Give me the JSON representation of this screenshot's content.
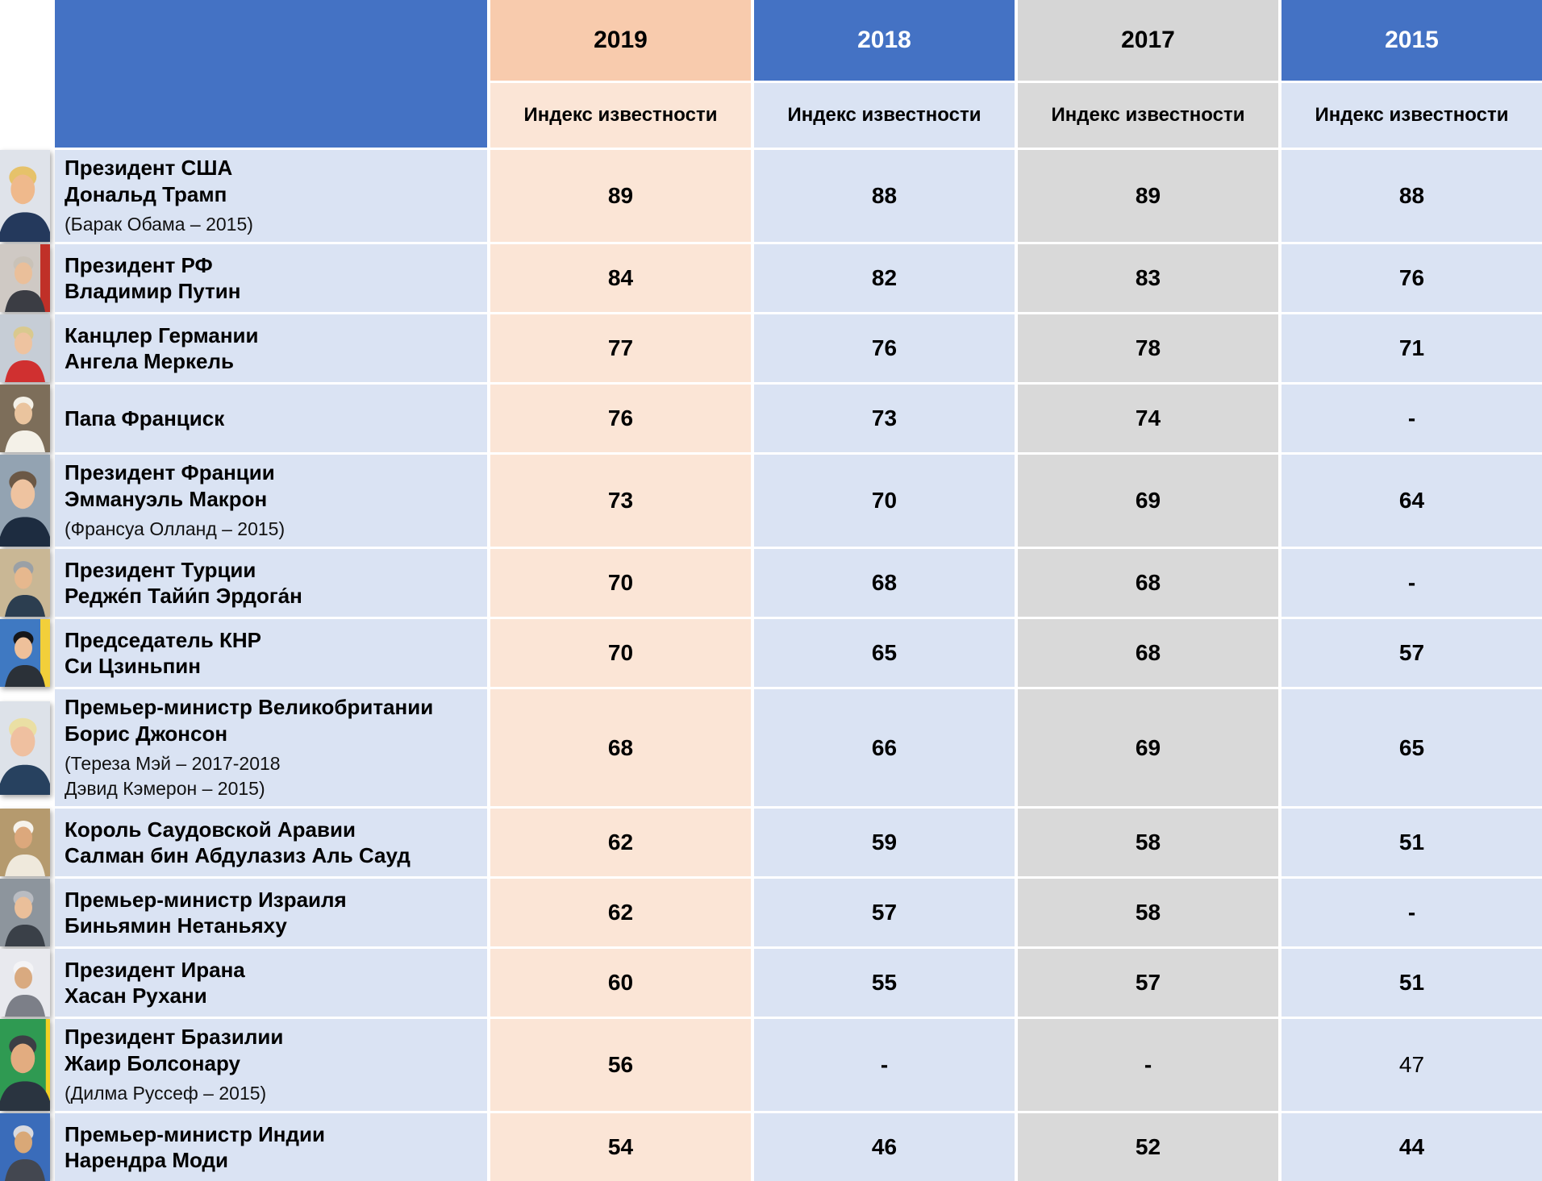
{
  "table": {
    "corner_bg": "#4472C4",
    "label_col_bg": "#DAE3F3",
    "columns": [
      {
        "year": "2019",
        "subheader": "Индекс известности",
        "header_bg": "#F8CBAD",
        "header_fg": "#000000",
        "cell_bg": "#FBE5D6"
      },
      {
        "year": "2018",
        "subheader": "Индекс известности",
        "header_bg": "#4472C4",
        "header_fg": "#FFFFFF",
        "cell_bg": "#DAE3F3"
      },
      {
        "year": "2017",
        "subheader": "Индекс известности",
        "header_bg": "#D6D6D6",
        "header_fg": "#000000",
        "cell_bg": "#D9D9D9"
      },
      {
        "year": "2015",
        "subheader": "Индекс известности",
        "header_bg": "#4472C4",
        "header_fg": "#FFFFFF",
        "cell_bg": "#DAE3F3"
      }
    ],
    "rows": [
      {
        "lines": [
          "Президент США",
          "Дональд Трамп"
        ],
        "note": [
          "(Барак Обама – 2015)"
        ],
        "values": [
          {
            "v": "89"
          },
          {
            "v": "88"
          },
          {
            "v": "89"
          },
          {
            "v": "88"
          }
        ],
        "photo": {
          "bg": "#dfe3ea",
          "hair": "#e6c26a",
          "skin": "#efb98c",
          "suit": "#24395c"
        }
      },
      {
        "lines": [
          "Президент РФ",
          "Владимир Путин"
        ],
        "note": [],
        "values": [
          {
            "v": "84"
          },
          {
            "v": "82"
          },
          {
            "v": "83"
          },
          {
            "v": "76"
          }
        ],
        "photo": {
          "bg": "#cfc9c4",
          "stripe": "#c03028",
          "hair": "#c9c2b8",
          "skin": "#eabf9a",
          "suit": "#3b3d44"
        }
      },
      {
        "lines": [
          "Канцлер Германии",
          "Ангела Меркель"
        ],
        "note": [],
        "values": [
          {
            "v": "77"
          },
          {
            "v": "76"
          },
          {
            "v": "78"
          },
          {
            "v": "71"
          }
        ],
        "photo": {
          "bg": "#c6cdd6",
          "hair": "#d9c98e",
          "skin": "#eec3a0",
          "suit": "#d03030"
        }
      },
      {
        "lines": [
          "Папа Франциск"
        ],
        "note": [],
        "values": [
          {
            "v": "76"
          },
          {
            "v": "73"
          },
          {
            "v": "74"
          },
          {
            "v": "-"
          }
        ],
        "photo": {
          "bg": "#7d6e5a",
          "hair": "#f4f1e8",
          "skin": "#eac49e",
          "suit": "#f4f1e8"
        }
      },
      {
        "lines": [
          "Президент Франции",
          "Эммануэль Макрон"
        ],
        "note": [
          "(Франсуа Олланд – 2015)"
        ],
        "values": [
          {
            "v": "73"
          },
          {
            "v": "70"
          },
          {
            "v": "69"
          },
          {
            "v": "64"
          }
        ],
        "photo": {
          "bg": "#93a3b2",
          "hair": "#6b5846",
          "skin": "#eec3a0",
          "suit": "#1d2c40"
        }
      },
      {
        "lines": [
          "Президент Турции",
          "Редже́п Тайи́п Эрдога́н"
        ],
        "note": [],
        "values": [
          {
            "v": "70"
          },
          {
            "v": "68"
          },
          {
            "v": "68"
          },
          {
            "v": "-"
          }
        ],
        "photo": {
          "bg": "#c9b795",
          "hair": "#9aa0a6",
          "skin": "#e6b88e",
          "suit": "#2c3e50"
        }
      },
      {
        "lines": [
          "Председатель КНР",
          "Си Цзиньпин"
        ],
        "note": [],
        "values": [
          {
            "v": "70"
          },
          {
            "v": "65"
          },
          {
            "v": "68"
          },
          {
            "v": "57"
          }
        ],
        "photo": {
          "bg": "#3f79c2",
          "stripe": "#f2cf3a",
          "hair": "#15161a",
          "skin": "#eec09a",
          "suit": "#2b3138"
        }
      },
      {
        "lines": [
          "Премьер-министр Великобритании",
          "Борис Джонсон"
        ],
        "note": [
          "(Тереза Мэй – 2017-2018",
          "Дэвид Кэмерон – 2015)"
        ],
        "values": [
          {
            "v": "68"
          },
          {
            "v": "66"
          },
          {
            "v": "69"
          },
          {
            "v": "65"
          }
        ],
        "photo": {
          "bg": "#dde2e9",
          "hair": "#eadfa4",
          "skin": "#efc0a0",
          "suit": "#27415f"
        }
      },
      {
        "lines": [
          "Король Саудовской Аравии",
          "Салман бин Абдулазиз Аль Сауд"
        ],
        "note": [],
        "values": [
          {
            "v": "62"
          },
          {
            "v": "59"
          },
          {
            "v": "58"
          },
          {
            "v": "51"
          }
        ],
        "photo": {
          "bg": "#b59a6e",
          "hair": "#f6f3ec",
          "skin": "#dca87c",
          "suit": "#efe9dc"
        }
      },
      {
        "lines": [
          "Премьер-министр Израиля",
          "Биньямин Нетаньяху"
        ],
        "note": [],
        "values": [
          {
            "v": "62"
          },
          {
            "v": "57"
          },
          {
            "v": "58"
          },
          {
            "v": "-"
          }
        ],
        "photo": {
          "bg": "#8d959d",
          "hair": "#b9bcc2",
          "skin": "#eabf9a",
          "suit": "#3a4048"
        }
      },
      {
        "lines": [
          "Президент Ирана",
          "Хасан Рухани"
        ],
        "note": [],
        "values": [
          {
            "v": "60"
          },
          {
            "v": "55"
          },
          {
            "v": "57"
          },
          {
            "v": "51"
          }
        ],
        "photo": {
          "bg": "#e8e9ee",
          "hair": "#f4f4f6",
          "skin": "#d9aa80",
          "suit": "#7c7f88"
        }
      },
      {
        "lines": [
          "Президент Бразилии",
          "Жаир Болсонару"
        ],
        "note": [
          "(Дилма Руссеф – 2015)"
        ],
        "values": [
          {
            "v": "56"
          },
          {
            "v": "-"
          },
          {
            "v": "-"
          },
          {
            "v": "47",
            "regular": true
          }
        ],
        "photo": {
          "bg": "#2f9a52",
          "stripe": "#f2d024",
          "hair": "#3c3e45",
          "skin": "#e2ac80",
          "suit": "#2a3440"
        }
      },
      {
        "lines": [
          "Премьер-министр Индии",
          "Нарендра Моди"
        ],
        "note": [],
        "values": [
          {
            "v": "54"
          },
          {
            "v": "46"
          },
          {
            "v": "52"
          },
          {
            "v": "44"
          }
        ],
        "photo": {
          "bg": "#3a6cba",
          "hair": "#d9dadf",
          "skin": "#d9a877",
          "suit": "#434750"
        }
      }
    ]
  },
  "chart_data": {
    "type": "table",
    "value_label": "Индекс известности",
    "years": [
      "2019",
      "2018",
      "2017",
      "2015"
    ],
    "leaders": [
      "Дональд Трамп",
      "Владимир Путин",
      "Ангела Меркель",
      "Папа Франциск",
      "Эммануэль Макрон",
      "Редже́п Тайи́п Эрдога́н",
      "Си Цзиньпин",
      "Борис Джонсон",
      "Салман бин Абдулазиз Аль Сауд",
      "Биньямин Нетаньяху",
      "Хасан Рухани",
      "Жаир Болсонару",
      "Нарендра Моди"
    ],
    "series": [
      {
        "name": "2019",
        "values": [
          89,
          84,
          77,
          76,
          73,
          70,
          70,
          68,
          62,
          62,
          60,
          56,
          54
        ]
      },
      {
        "name": "2018",
        "values": [
          88,
          82,
          76,
          73,
          70,
          68,
          65,
          66,
          59,
          57,
          55,
          null,
          46
        ]
      },
      {
        "name": "2017",
        "values": [
          89,
          83,
          78,
          74,
          69,
          68,
          68,
          69,
          58,
          58,
          57,
          null,
          52
        ]
      },
      {
        "name": "2015",
        "values": [
          88,
          76,
          71,
          null,
          64,
          null,
          57,
          65,
          51,
          null,
          51,
          47,
          44
        ]
      }
    ]
  }
}
